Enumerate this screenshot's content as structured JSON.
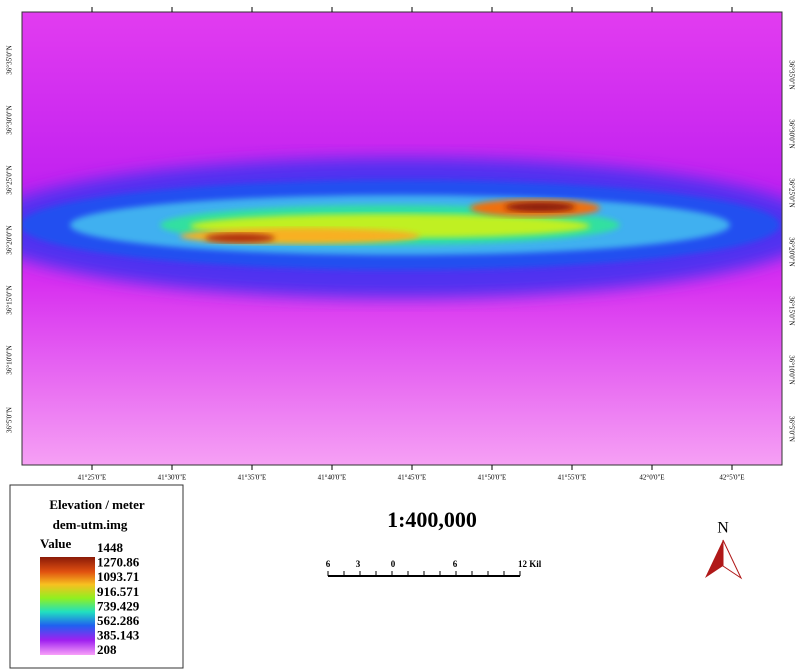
{
  "map": {
    "lon_labels": [
      "41°25'0\"E",
      "41°30'0\"E",
      "41°35'0\"E",
      "41°40'0\"E",
      "41°45'0\"E",
      "41°50'0\"E",
      "41°55'0\"E",
      "42°0'0\"E",
      "42°5'0\"E"
    ],
    "lat_labels_left": [
      "36°35'0\"N",
      "36°30'0\"N",
      "36°25'0\"N",
      "36°20'0\"N",
      "36°15'0\"N",
      "36°10'0\"N",
      "36°5'0\"N"
    ],
    "lat_labels_right": [
      "36°35'0\"N",
      "36°30'0\"N",
      "36°25'0\"N",
      "36°20'0\"N",
      "36°15'0\"N",
      "36°10'0\"N",
      "36°5'0\"N"
    ]
  },
  "legend": {
    "title": "Elevation / meter",
    "file": "dem-utm.img",
    "value_label": "Value",
    "values": [
      "1448",
      "1270.86",
      "1093.71",
      "916.571",
      "739.429",
      "562.286",
      "385.143",
      "208"
    ]
  },
  "scale": {
    "ratio": "1:400,000",
    "labels": [
      "6",
      "3",
      "0",
      "6",
      "12 Kil"
    ]
  },
  "north": "N"
}
